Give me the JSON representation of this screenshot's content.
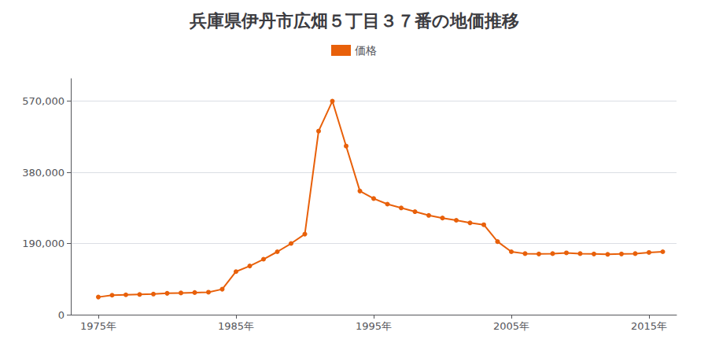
{
  "chart_data": {
    "type": "line",
    "title": "兵庫県伊丹市広畑５丁目３７番の地価推移",
    "x": [
      1975,
      1976,
      1977,
      1978,
      1979,
      1980,
      1981,
      1982,
      1983,
      1984,
      1985,
      1986,
      1987,
      1988,
      1989,
      1990,
      1991,
      1992,
      1993,
      1994,
      1995,
      1996,
      1997,
      1998,
      1999,
      2000,
      2001,
      2002,
      2003,
      2004,
      2005,
      2006,
      2007,
      2008,
      2009,
      2010,
      2011,
      2012,
      2013,
      2014,
      2015,
      2016
    ],
    "series": [
      {
        "name": "価格",
        "color": "#e8600a",
        "marker": "circle",
        "values": [
          47000,
          52000,
          53000,
          54000,
          55000,
          57000,
          58000,
          59000,
          60000,
          68000,
          115000,
          130000,
          148000,
          168000,
          190000,
          215000,
          490000,
          570000,
          450000,
          330000,
          310000,
          295000,
          285000,
          275000,
          265000,
          258000,
          252000,
          245000,
          240000,
          195000,
          168000,
          163000,
          162000,
          163000,
          165000,
          163000,
          162000,
          161000,
          162000,
          163000,
          166000,
          168000
        ]
      }
    ],
    "xlim": [
      1973,
      2017
    ],
    "xticks": [
      {
        "value": 1975,
        "label": "1975年"
      },
      {
        "value": 1985,
        "label": "1985年"
      },
      {
        "value": 1995,
        "label": "1995年"
      },
      {
        "value": 2005,
        "label": "2005年"
      },
      {
        "value": 2015,
        "label": "2015年"
      }
    ],
    "ylim": [
      0,
      630000
    ],
    "yticks": [
      0,
      {
        "value": 190000,
        "label": "190,000"
      },
      {
        "value": 380000,
        "label": "380,000"
      },
      {
        "value": 570000,
        "label": "570,000"
      }
    ],
    "grid": "y",
    "legend": "top"
  }
}
